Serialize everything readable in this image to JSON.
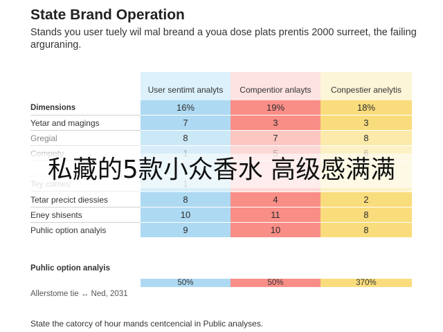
{
  "title": "State Brand Operation",
  "subtitle": "Stands you user tuely wil mal breand a youa dose plats prentis 2000 surreet, the failing arguraning.",
  "columns": [
    "User sentimt analyts",
    "Compentior anlayts",
    "Conpestier anelytis"
  ],
  "rows": [
    {
      "label": "Dimensions",
      "values": [
        "16%",
        "19%",
        "18%"
      ]
    },
    {
      "label": "Yetar and magings",
      "values": [
        "7",
        "3",
        "3"
      ]
    },
    {
      "label": "Gregial",
      "values": [
        "8",
        "7",
        "8"
      ]
    },
    {
      "label": "Compety",
      "values": [
        "1",
        "5",
        "6"
      ]
    },
    {
      "label": "",
      "values": [
        "",
        "",
        ""
      ]
    },
    {
      "label": "Tey comes",
      "values": [
        "1",
        "",
        ""
      ]
    },
    {
      "label": "Tetar precict diessies",
      "values": [
        "8",
        "4",
        "2"
      ]
    },
    {
      "label": "Eney shisents",
      "values": [
        "10",
        "11",
        "8"
      ]
    },
    {
      "label": "Puhlic option analyis",
      "values": [
        "9",
        "10",
        "8"
      ]
    }
  ],
  "overlay_text": "私藏的5款小众香水 高级感满满",
  "section2": {
    "heading": "Puhlic option analyis",
    "values": [
      "50%",
      "50%",
      "370%"
    ],
    "caption": "Allerstome tie ↔ Ned, 2031"
  },
  "footer": "State the catorcy of hour mands centcencial in Public analyses."
}
